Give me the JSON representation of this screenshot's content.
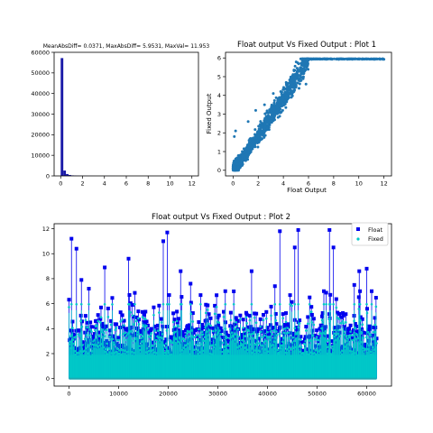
{
  "colors": {
    "float": "#0000ee",
    "fixed": "#00c8c8",
    "scatter": "#1f77b4",
    "hist": "#1a1aa8"
  },
  "chart_data": [
    {
      "type": "bar",
      "title": "MeanAbsDiff= 0.0371, MaxAbsDiff= 5.9531, MaxVal= 11.953",
      "xlabel": "",
      "ylabel": "",
      "xlim": [
        -0.6,
        12.6
      ],
      "ylim": [
        0,
        60000
      ],
      "xticks": [
        0,
        2,
        4,
        6,
        8,
        10,
        12
      ],
      "yticks": [
        0,
        10000,
        20000,
        30000,
        40000,
        50000,
        60000
      ],
      "bin_edges": [
        0,
        0.239,
        0.478,
        0.717,
        0.956,
        1.195,
        1.434,
        1.673,
        1.912,
        2.151,
        2.39,
        2.629,
        2.868,
        3.107,
        3.346,
        3.585,
        3.824,
        4.063,
        4.302,
        4.541,
        4.78,
        5.019,
        5.258,
        5.497,
        5.736,
        5.975
      ],
      "values": [
        57200,
        2600,
        900,
        450,
        250,
        160,
        110,
        80,
        60,
        45,
        35,
        28,
        22,
        18,
        14,
        11,
        9,
        7,
        6,
        5,
        4,
        3,
        3,
        2,
        2
      ]
    },
    {
      "type": "scatter",
      "title": "Float output Vs Fixed Output : Plot 1",
      "xlabel": "Float Output",
      "ylabel": "Fixed Output",
      "xlim": [
        -0.6,
        12.6
      ],
      "ylim": [
        -0.3,
        6.3
      ],
      "xticks": [
        0,
        2,
        4,
        6,
        8,
        10,
        12
      ],
      "yticks": [
        0,
        1,
        2,
        3,
        4,
        5,
        6
      ],
      "trend": {
        "x": [
          0,
          0.4,
          1,
          2,
          3,
          4,
          5,
          5.5,
          5.9,
          12
        ],
        "y": [
          0,
          0.3,
          0.85,
          1.85,
          2.85,
          3.85,
          4.85,
          5.4,
          5.95,
          5.95
        ]
      }
    },
    {
      "type": "line",
      "title": "Float output Vs Fixed Output : Plot 2",
      "xlabel": "",
      "ylabel": "",
      "xlim": [
        -3000,
        65000
      ],
      "ylim": [
        -0.6,
        12.4
      ],
      "xticks": [
        0,
        10000,
        20000,
        30000,
        40000,
        50000,
        60000
      ],
      "yticks": [
        0,
        2,
        4,
        6,
        8,
        10,
        12
      ],
      "legend": "top-right",
      "series": [
        {
          "name": "Float",
          "marker": "square"
        },
        {
          "name": "Fixed",
          "marker": "circle"
        }
      ],
      "x_max": 62000,
      "spikes": [
        {
          "x": 500,
          "y": 11.2
        },
        {
          "x": 1500,
          "y": 10.4
        },
        {
          "x": 2500,
          "y": 7.9
        },
        {
          "x": 4000,
          "y": 7.2
        },
        {
          "x": 7200,
          "y": 8.9
        },
        {
          "x": 12000,
          "y": 9.6
        },
        {
          "x": 19000,
          "y": 11.0
        },
        {
          "x": 19800,
          "y": 11.7
        },
        {
          "x": 22500,
          "y": 8.6
        },
        {
          "x": 24500,
          "y": 7.6
        },
        {
          "x": 31500,
          "y": 7.0
        },
        {
          "x": 36800,
          "y": 8.6
        },
        {
          "x": 41500,
          "y": 7.4
        },
        {
          "x": 42500,
          "y": 11.8
        },
        {
          "x": 45500,
          "y": 10.5
        },
        {
          "x": 46200,
          "y": 11.9
        },
        {
          "x": 52500,
          "y": 11.9
        },
        {
          "x": 53300,
          "y": 10.5
        },
        {
          "x": 57500,
          "y": 7.5
        },
        {
          "x": 58500,
          "y": 8.6
        },
        {
          "x": 60000,
          "y": 8.8
        },
        {
          "x": 61000,
          "y": 7.0
        }
      ]
    }
  ]
}
